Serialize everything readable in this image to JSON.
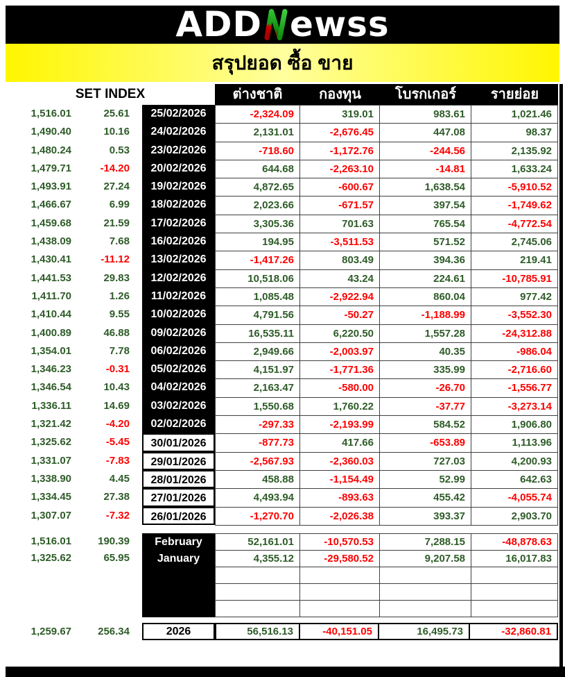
{
  "logo": {
    "prefix": "ADD",
    "n_letter": "N",
    "suffix": "ewss"
  },
  "title": "สรุปยอด ซื้อ ขาย",
  "colors": {
    "positive": "#2e5c28",
    "negative": "#fe0000",
    "banner_yellow": "#fff600",
    "header_bg": "#000000",
    "logo_green": "#21b021",
    "logo_red": "#cc0000"
  },
  "chart_data": {
    "type": "table",
    "title": "สรุปยอด ซื้อ ขาย",
    "set_index_header": "SET INDEX",
    "columns": [
      "ต่างชาติ",
      "กองทุน",
      "โบรกเกอร์",
      "รายย่อย"
    ],
    "daily": [
      {
        "set_index": "1,516.01",
        "change": "25.61",
        "date": "25/02/2026",
        "values": [
          "-2,324.09",
          "319.01",
          "983.61",
          "1,021.46"
        ]
      },
      {
        "set_index": "1,490.40",
        "change": "10.16",
        "date": "24/02/2026",
        "values": [
          "2,131.01",
          "-2,676.45",
          "447.08",
          "98.37"
        ]
      },
      {
        "set_index": "1,480.24",
        "change": "0.53",
        "date": "23/02/2026",
        "values": [
          "-718.60",
          "-1,172.76",
          "-244.56",
          "2,135.92"
        ]
      },
      {
        "set_index": "1,479.71",
        "change": "-14.20",
        "date": "20/02/2026",
        "values": [
          "644.68",
          "-2,263.10",
          "-14.81",
          "1,633.24"
        ]
      },
      {
        "set_index": "1,493.91",
        "change": "27.24",
        "date": "19/02/2026",
        "values": [
          "4,872.65",
          "-600.67",
          "1,638.54",
          "-5,910.52"
        ]
      },
      {
        "set_index": "1,466.67",
        "change": "6.99",
        "date": "18/02/2026",
        "values": [
          "2,023.66",
          "-671.57",
          "397.54",
          "-1,749.62"
        ]
      },
      {
        "set_index": "1,459.68",
        "change": "21.59",
        "date": "17/02/2026",
        "values": [
          "3,305.36",
          "701.63",
          "765.54",
          "-4,772.54"
        ]
      },
      {
        "set_index": "1,438.09",
        "change": "7.68",
        "date": "16/02/2026",
        "values": [
          "194.95",
          "-3,511.53",
          "571.52",
          "2,745.06"
        ]
      },
      {
        "set_index": "1,430.41",
        "change": "-11.12",
        "date": "13/02/2026",
        "values": [
          "-1,417.26",
          "803.49",
          "394.36",
          "219.41"
        ]
      },
      {
        "set_index": "1,441.53",
        "change": "29.83",
        "date": "12/02/2026",
        "values": [
          "10,518.06",
          "43.24",
          "224.61",
          "-10,785.91"
        ]
      },
      {
        "set_index": "1,411.70",
        "change": "1.26",
        "date": "11/02/2026",
        "values": [
          "1,085.48",
          "-2,922.94",
          "860.04",
          "977.42"
        ]
      },
      {
        "set_index": "1,410.44",
        "change": "9.55",
        "date": "10/02/2026",
        "values": [
          "4,791.56",
          "-50.27",
          "-1,188.99",
          "-3,552.30"
        ]
      },
      {
        "set_index": "1,400.89",
        "change": "46.88",
        "date": "09/02/2026",
        "values": [
          "16,535.11",
          "6,220.50",
          "1,557.28",
          "-24,312.88"
        ]
      },
      {
        "set_index": "1,354.01",
        "change": "7.78",
        "date": "06/02/2026",
        "values": [
          "2,949.66",
          "-2,003.97",
          "40.35",
          "-986.04"
        ]
      },
      {
        "set_index": "1,346.23",
        "change": "-0.31",
        "date": "05/02/2026",
        "values": [
          "4,151.97",
          "-1,771.36",
          "335.99",
          "-2,716.60"
        ]
      },
      {
        "set_index": "1,346.54",
        "change": "10.43",
        "date": "04/02/2026",
        "values": [
          "2,163.47",
          "-580.00",
          "-26.70",
          "-1,556.77"
        ]
      },
      {
        "set_index": "1,336.11",
        "change": "14.69",
        "date": "03/02/2026",
        "values": [
          "1,550.68",
          "1,760.22",
          "-37.77",
          "-3,273.14"
        ]
      },
      {
        "set_index": "1,321.42",
        "change": "-4.20",
        "date": "02/02/2026",
        "values": [
          "-297.33",
          "-2,193.99",
          "584.52",
          "1,906.80"
        ]
      },
      {
        "set_index": "1,325.62",
        "change": "-5.45",
        "date": "30/01/2026",
        "values": [
          "-877.73",
          "417.66",
          "-653.89",
          "1,113.96"
        ]
      },
      {
        "set_index": "1,331.07",
        "change": "-7.83",
        "date": "29/01/2026",
        "values": [
          "-2,567.93",
          "-2,360.03",
          "727.03",
          "4,200.93"
        ]
      },
      {
        "set_index": "1,338.90",
        "change": "4.45",
        "date": "28/01/2026",
        "values": [
          "458.88",
          "-1,154.49",
          "52.99",
          "642.63"
        ]
      },
      {
        "set_index": "1,334.45",
        "change": "27.38",
        "date": "27/01/2026",
        "values": [
          "4,493.94",
          "-893.63",
          "455.42",
          "-4,055.74"
        ]
      },
      {
        "set_index": "1,307.07",
        "change": "-7.32",
        "date": "26/01/2026",
        "values": [
          "-1,270.70",
          "-2,026.38",
          "393.37",
          "2,903.70"
        ]
      }
    ],
    "monthly": [
      {
        "set_index": "1,516.01",
        "change": "190.39",
        "label": "February",
        "values": [
          "52,161.01",
          "-10,570.53",
          "7,288.15",
          "-48,878.63"
        ]
      },
      {
        "set_index": "1,325.62",
        "change": "65.95",
        "label": "January",
        "values": [
          "4,355.12",
          "-29,580.52",
          "9,207.58",
          "16,017.83"
        ]
      }
    ],
    "empty_summary_rows": 3,
    "year": {
      "set_index": "1,259.67",
      "change": "256.34",
      "label": "2026",
      "values": [
        "56,516.13",
        "-40,151.05",
        "16,495.73",
        "-32,860.81"
      ]
    }
  }
}
